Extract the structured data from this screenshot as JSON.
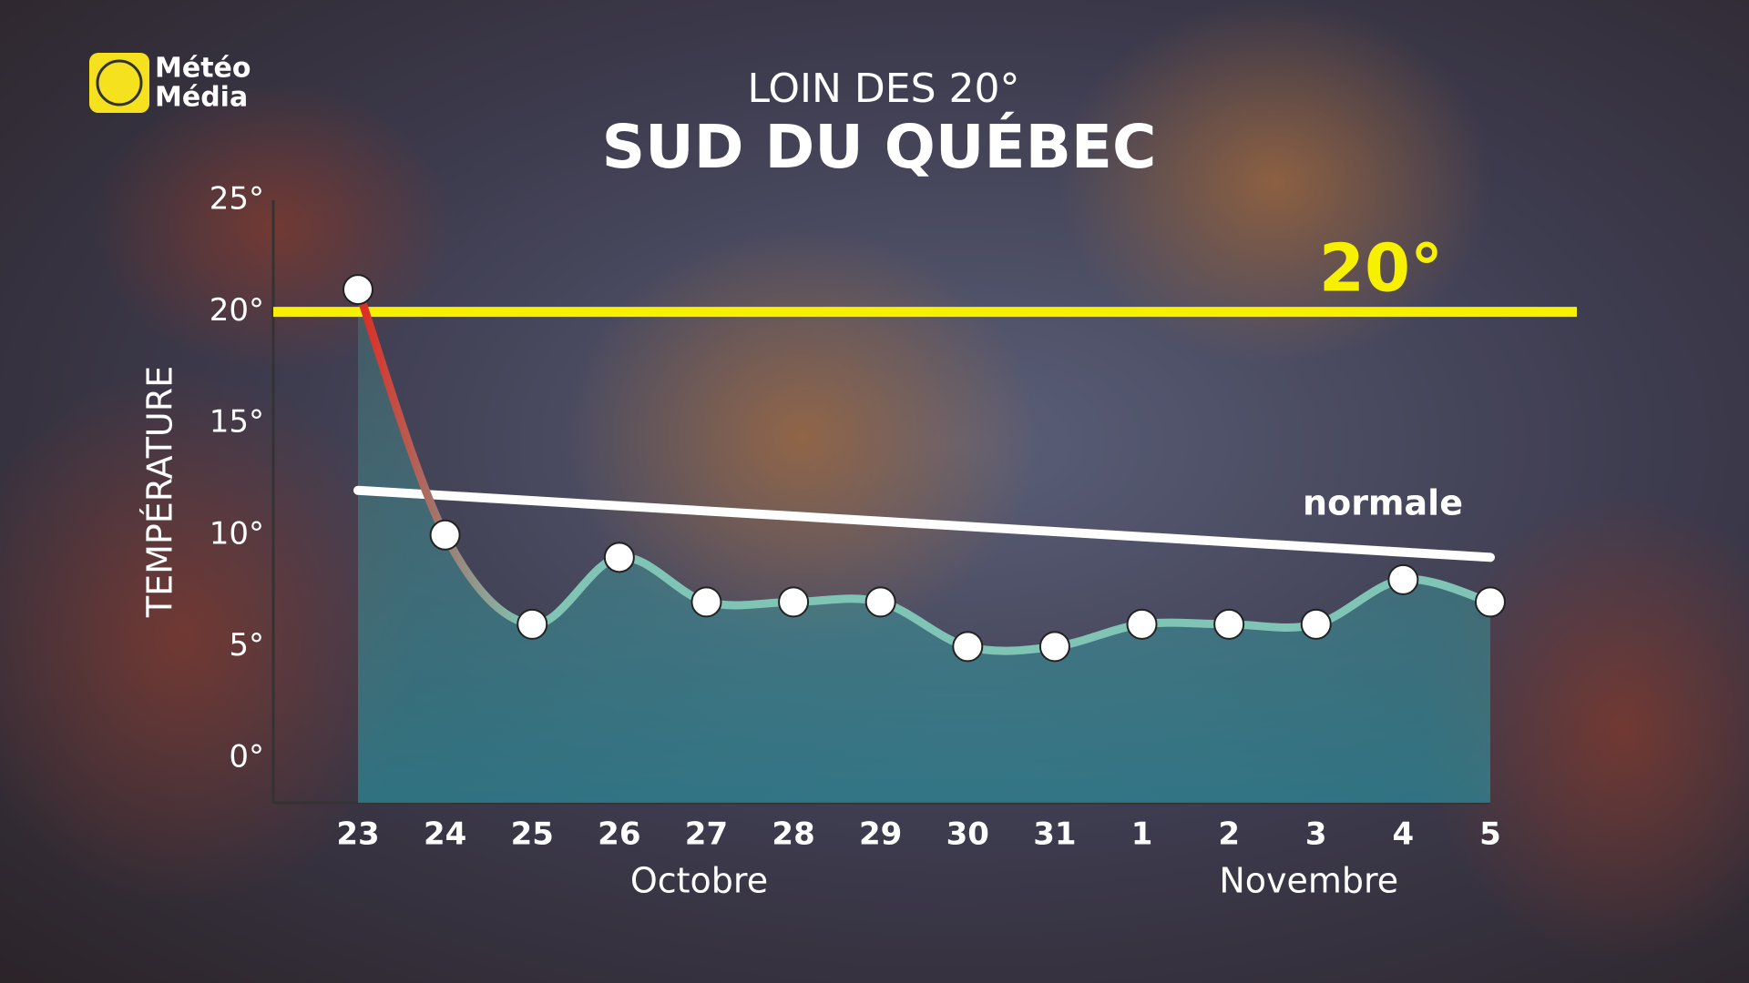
{
  "logo": {
    "lines": [
      "Météo",
      "Média"
    ]
  },
  "chart_data": {
    "type": "line",
    "subtitle": "LOIN DES 20°",
    "title": "SUD DU QUÉBEC",
    "y_label": "TEMPÉRATURE",
    "categories": [
      "23",
      "24",
      "25",
      "26",
      "27",
      "28",
      "29",
      "30",
      "31",
      "1",
      "2",
      "3",
      "4",
      "5"
    ],
    "months": [
      "Octobre",
      "Novembre"
    ],
    "series": [
      {
        "color": "#7fc4b4",
        "values": [
          21,
          10,
          6,
          9,
          7,
          7,
          7,
          5,
          5,
          6,
          6,
          6,
          8,
          7
        ]
      }
    ],
    "normal_line": {
      "label": "normale",
      "start": 12,
      "end": 9,
      "color": "#ffffff"
    },
    "reference_line": {
      "value": 20,
      "label": "20°",
      "color": "#f7f000"
    },
    "ylim": [
      -2,
      25
    ],
    "yticks": [
      {
        "value": 0,
        "label": "0°"
      },
      {
        "value": 5,
        "label": "5°"
      },
      {
        "value": 10,
        "label": "10°"
      },
      {
        "value": 15,
        "label": "15°"
      },
      {
        "value": 20,
        "label": "20°"
      },
      {
        "value": 25,
        "label": "25°"
      }
    ]
  }
}
